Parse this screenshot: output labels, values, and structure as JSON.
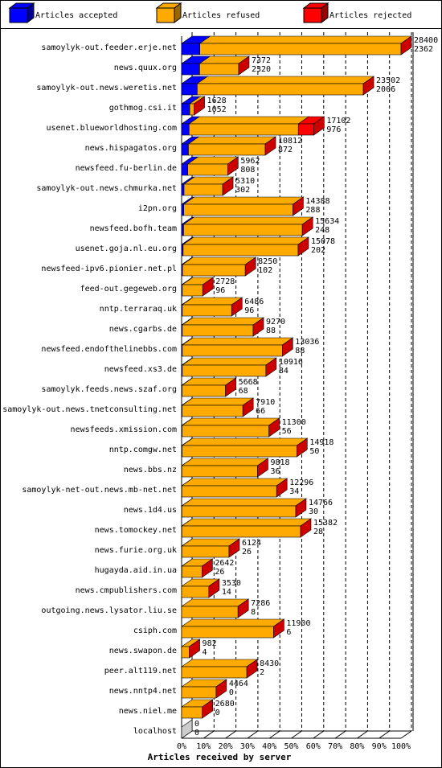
{
  "chart_data": {
    "type": "bar3d",
    "orientation": "horizontal",
    "stacked": true,
    "xlabel": "Articles received by server",
    "categories": [
      "samoylyk-out.feeder.erje.net",
      "news.quux.org",
      "samoylyk-out.news.weretis.net",
      "gothmog.csi.it",
      "usenet.blueworldhosting.com",
      "news.hispagatos.org",
      "newsfeed.fu-berlin.de",
      "samoylyk-out.news.chmurka.net",
      "i2pn.org",
      "newsfeed.bofh.team",
      "usenet.goja.nl.eu.org",
      "newsfeed-ipv6.pionier.net.pl",
      "feed-out.gegeweb.org",
      "nntp.terraraq.uk",
      "news.cgarbs.de",
      "newsfeed.endofthelinebbs.com",
      "newsfeed.xs3.de",
      "samoylyk.feeds.news.szaf.org",
      "samoylyk-out.news.tnetconsulting.net",
      "newsfeeds.xmission.com",
      "nntp.comgw.net",
      "news.bbs.nz",
      "samoylyk-net-out.news.mb-net.net",
      "news.1d4.us",
      "news.tomockey.net",
      "news.furie.org.uk",
      "hugayda.aid.in.ua",
      "news.cmpublishers.com",
      "outgoing.news.lysator.liu.se",
      "csiph.com",
      "news.swapon.de",
      "peer.alt119.net",
      "news.nntp4.net",
      "news.niel.me",
      "localhost"
    ],
    "series": [
      {
        "name": "Articles accepted",
        "color": "#0000ff",
        "values": [
          8.3,
          8.2,
          7.1,
          3.7,
          3.4,
          3.1,
          2.8,
          1.1,
          1.0,
          0.9,
          0.7,
          0.4,
          0.3,
          0.3,
          0.3,
          0.3,
          0.3,
          0.2,
          0.2,
          0.2,
          0.2,
          0.1,
          0.1,
          0.1,
          0.1,
          0.1,
          0.1,
          0,
          0,
          0,
          0,
          0,
          0,
          0,
          0
        ]
      },
      {
        "name": "Articles refused",
        "color": "#ffaa00",
        "values": [
          91.7,
          17.8,
          75.7,
          2,
          49.8,
          35,
          18.2,
          17.6,
          49.7,
          54.1,
          52.4,
          28.6,
          9.3,
          22.5,
          32.3,
          45.6,
          38.1,
          19.8,
          27.7,
          39.6,
          52.3,
          34.5,
          43.2,
          51.9,
          54.1,
          21.5,
          9.2,
          12.4,
          25.7,
          41.9,
          3.5,
          29.7,
          15.7,
          9.4,
          0
        ]
      },
      {
        "name": "Articles rejected",
        "color": "#ff0000",
        "values": [
          0,
          0,
          0,
          0,
          7,
          0,
          0,
          0,
          0,
          0,
          0,
          0,
          0,
          0,
          0,
          0,
          0,
          0,
          0,
          0,
          0,
          0,
          0,
          0,
          0,
          0,
          0,
          0,
          0,
          0,
          0,
          0,
          0,
          0,
          0
        ]
      }
    ],
    "label_totals": [
      28400,
      7372,
      23502,
      1628,
      17102,
      10812,
      5962,
      5310,
      14388,
      15634,
      15078,
      8250,
      2728,
      6486,
      9270,
      13036,
      10916,
      5668,
      7910,
      11300,
      14918,
      9818,
      12296,
      14766,
      15382,
      6124,
      2642,
      3530,
      7286,
      11900,
      982,
      8430,
      4464,
      2680,
      0
    ],
    "label_accepted": [
      2362,
      2320,
      2006,
      1052,
      976,
      872,
      808,
      302,
      288,
      248,
      202,
      102,
      96,
      96,
      88,
      88,
      84,
      68,
      66,
      56,
      50,
      36,
      34,
      30,
      28,
      26,
      26,
      14,
      8,
      6,
      4,
      2,
      0,
      0,
      0
    ],
    "xlim": [
      0,
      100
    ],
    "xticks": [
      {
        "value": 0,
        "label": "0%"
      },
      {
        "value": 10,
        "label": "10%"
      },
      {
        "value": 20,
        "label": "20%"
      },
      {
        "value": 30,
        "label": "30%"
      },
      {
        "value": 40,
        "label": "40%"
      },
      {
        "value": 50,
        "label": "50%"
      },
      {
        "value": 60,
        "label": "60%"
      },
      {
        "value": 70,
        "label": "70%"
      },
      {
        "value": 80,
        "label": "80%"
      },
      {
        "value": 90,
        "label": "90%"
      },
      {
        "value": 100,
        "label": "100%"
      }
    ],
    "grid": true
  }
}
